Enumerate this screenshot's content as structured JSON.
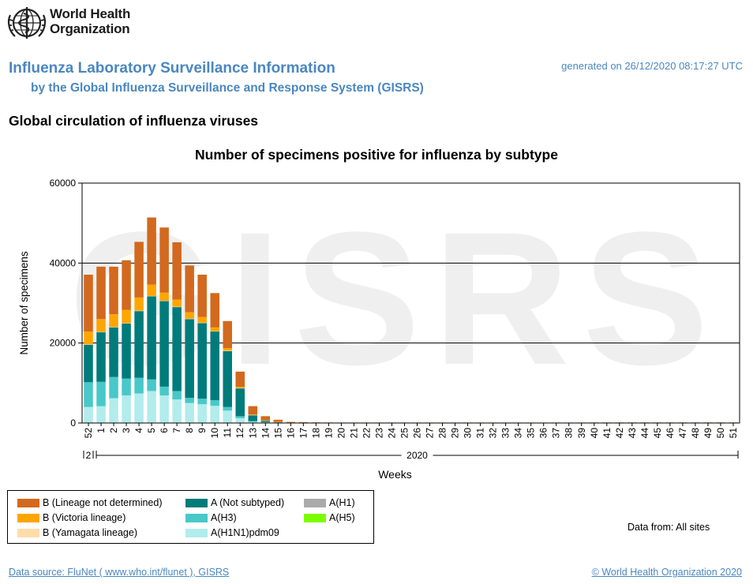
{
  "header": {
    "org_name_line1": "World Health",
    "org_name_line2": "Organization",
    "title": "Influenza Laboratory Surveillance Information",
    "subtitle": "by the Global Influenza Surveillance and Response System (GISRS)",
    "generated": "generated on 26/12/2020 08:17:27 UTC"
  },
  "section_title": "Global circulation of influenza viruses",
  "watermark": "GISRS",
  "chart_data": {
    "type": "bar",
    "stacked": true,
    "title": "Number of specimens positive for influenza by subtype",
    "xlabel": "Weeks",
    "ylabel": "Number of specimens",
    "ylim": [
      0,
      60000
    ],
    "yticks": [
      0,
      20000,
      40000,
      60000
    ],
    "grid": true,
    "year_labels": [
      {
        "label": "2",
        "from": "52",
        "to": "52"
      },
      {
        "label": "2020",
        "from": "1",
        "to": "51"
      }
    ],
    "categories": [
      "52",
      "1",
      "2",
      "3",
      "4",
      "5",
      "6",
      "7",
      "8",
      "9",
      "10",
      "11",
      "12",
      "13",
      "14",
      "15",
      "16",
      "17",
      "18",
      "19",
      "20",
      "21",
      "22",
      "23",
      "24",
      "25",
      "26",
      "27",
      "28",
      "29",
      "30",
      "31",
      "32",
      "33",
      "34",
      "35",
      "36",
      "37",
      "38",
      "39",
      "40",
      "41",
      "42",
      "43",
      "44",
      "45",
      "46",
      "47",
      "48",
      "49",
      "50",
      "51"
    ],
    "series": [
      {
        "name": "A(H1N1)pdm09",
        "color": "#b2ecec",
        "values": [
          4000,
          4200,
          6200,
          6900,
          7400,
          8000,
          6900,
          5900,
          5000,
          4700,
          4300,
          3100,
          1200,
          300,
          150,
          80,
          30,
          20,
          15,
          10,
          10,
          10,
          10,
          10,
          10,
          10,
          10,
          10,
          10,
          10,
          10,
          10,
          10,
          10,
          10,
          10,
          10,
          10,
          10,
          10,
          10,
          10,
          10,
          10,
          10,
          10,
          10,
          10,
          10,
          10,
          10,
          10
        ]
      },
      {
        "name": "A(H3)",
        "color": "#48c8c8",
        "values": [
          6200,
          6100,
          5300,
          4200,
          3900,
          2900,
          2200,
          2100,
          1300,
          1400,
          1400,
          900,
          500,
          200,
          100,
          50,
          20,
          10,
          10,
          10,
          10,
          10,
          10,
          10,
          10,
          10,
          10,
          10,
          10,
          10,
          10,
          10,
          10,
          10,
          10,
          10,
          10,
          10,
          10,
          10,
          10,
          10,
          10,
          10,
          10,
          10,
          10,
          10,
          10,
          10,
          10,
          10
        ]
      },
      {
        "name": "A(H5)",
        "color": "#7cfc00",
        "values": [
          0,
          0,
          0,
          0,
          0,
          0,
          0,
          0,
          0,
          0,
          0,
          0,
          0,
          0,
          0,
          0,
          0,
          0,
          0,
          0,
          0,
          0,
          0,
          0,
          0,
          0,
          0,
          0,
          0,
          0,
          0,
          0,
          0,
          0,
          0,
          0,
          0,
          0,
          0,
          0,
          0,
          0,
          0,
          0,
          0,
          0,
          0,
          0,
          0,
          0,
          0,
          0
        ]
      },
      {
        "name": "A(H1)",
        "color": "#aaaaaa",
        "values": [
          0,
          0,
          0,
          0,
          0,
          0,
          0,
          0,
          0,
          0,
          0,
          0,
          0,
          0,
          0,
          0,
          0,
          0,
          0,
          0,
          0,
          0,
          0,
          0,
          0,
          0,
          0,
          0,
          0,
          0,
          0,
          0,
          0,
          0,
          0,
          0,
          0,
          0,
          0,
          0,
          0,
          0,
          0,
          0,
          0,
          0,
          0,
          0,
          0,
          0,
          0,
          0
        ]
      },
      {
        "name": "A (Not subtyped)",
        "color": "#007b7b",
        "values": [
          9400,
          12400,
          12400,
          13800,
          16700,
          20800,
          21400,
          21000,
          19700,
          18900,
          17200,
          14000,
          7000,
          1500,
          400,
          150,
          60,
          40,
          30,
          30,
          30,
          30,
          30,
          30,
          30,
          30,
          30,
          30,
          30,
          30,
          30,
          30,
          30,
          30,
          30,
          30,
          30,
          30,
          30,
          30,
          40,
          40,
          40,
          40,
          40,
          40,
          40,
          40,
          40,
          40,
          40,
          40
        ]
      },
      {
        "name": "B (Yamagata lineage)",
        "color": "#ffdcaa",
        "values": [
          100,
          100,
          100,
          100,
          100,
          100,
          100,
          100,
          100,
          100,
          100,
          100,
          50,
          20,
          10,
          10,
          5,
          5,
          5,
          5,
          5,
          5,
          5,
          5,
          5,
          5,
          5,
          5,
          5,
          5,
          5,
          5,
          5,
          5,
          5,
          5,
          5,
          5,
          5,
          5,
          5,
          5,
          5,
          5,
          5,
          5,
          5,
          5,
          5,
          5,
          5,
          5
        ]
      },
      {
        "name": "B (Victoria lineage)",
        "color": "#ffa500",
        "values": [
          3200,
          3200,
          3200,
          3300,
          3300,
          2800,
          2000,
          1800,
          1600,
          1400,
          900,
          600,
          300,
          100,
          50,
          30,
          10,
          10,
          10,
          10,
          10,
          10,
          10,
          10,
          10,
          10,
          10,
          10,
          10,
          10,
          10,
          10,
          10,
          10,
          10,
          10,
          10,
          10,
          10,
          10,
          10,
          10,
          10,
          10,
          10,
          10,
          10,
          10,
          10,
          10,
          10,
          10
        ]
      },
      {
        "name": "B (Lineage not determined)",
        "color": "#d2691e",
        "values": [
          14200,
          13100,
          11900,
          12400,
          13900,
          16800,
          16300,
          14300,
          11700,
          10600,
          8600,
          6800,
          3800,
          2100,
          1000,
          500,
          150,
          100,
          80,
          60,
          50,
          50,
          50,
          50,
          50,
          50,
          50,
          50,
          50,
          50,
          50,
          50,
          50,
          50,
          50,
          50,
          50,
          50,
          50,
          50,
          60,
          60,
          60,
          60,
          60,
          60,
          60,
          60,
          60,
          60,
          60,
          60
        ]
      }
    ]
  },
  "legend": [
    {
      "label": "B (Lineage not determined)",
      "color": "#d2691e"
    },
    {
      "label": "A (Not subtyped)",
      "color": "#007b7b"
    },
    {
      "label": "A(H1)",
      "color": "#aaaaaa"
    },
    {
      "label": "B (Victoria lineage)",
      "color": "#ffa500"
    },
    {
      "label": "A(H3)",
      "color": "#48c8c8"
    },
    {
      "label": "A(H5)",
      "color": "#7cfc00"
    },
    {
      "label": "B (Yamagata lineage)",
      "color": "#ffdcaa"
    },
    {
      "label": "A(H1N1)pdm09",
      "color": "#b2ecec"
    }
  ],
  "data_from": "Data from: All sites",
  "footer": {
    "source": "Data source: FluNet ( www.who.int/flunet ), GISRS",
    "copyright": "© World Health Organization 2020"
  }
}
